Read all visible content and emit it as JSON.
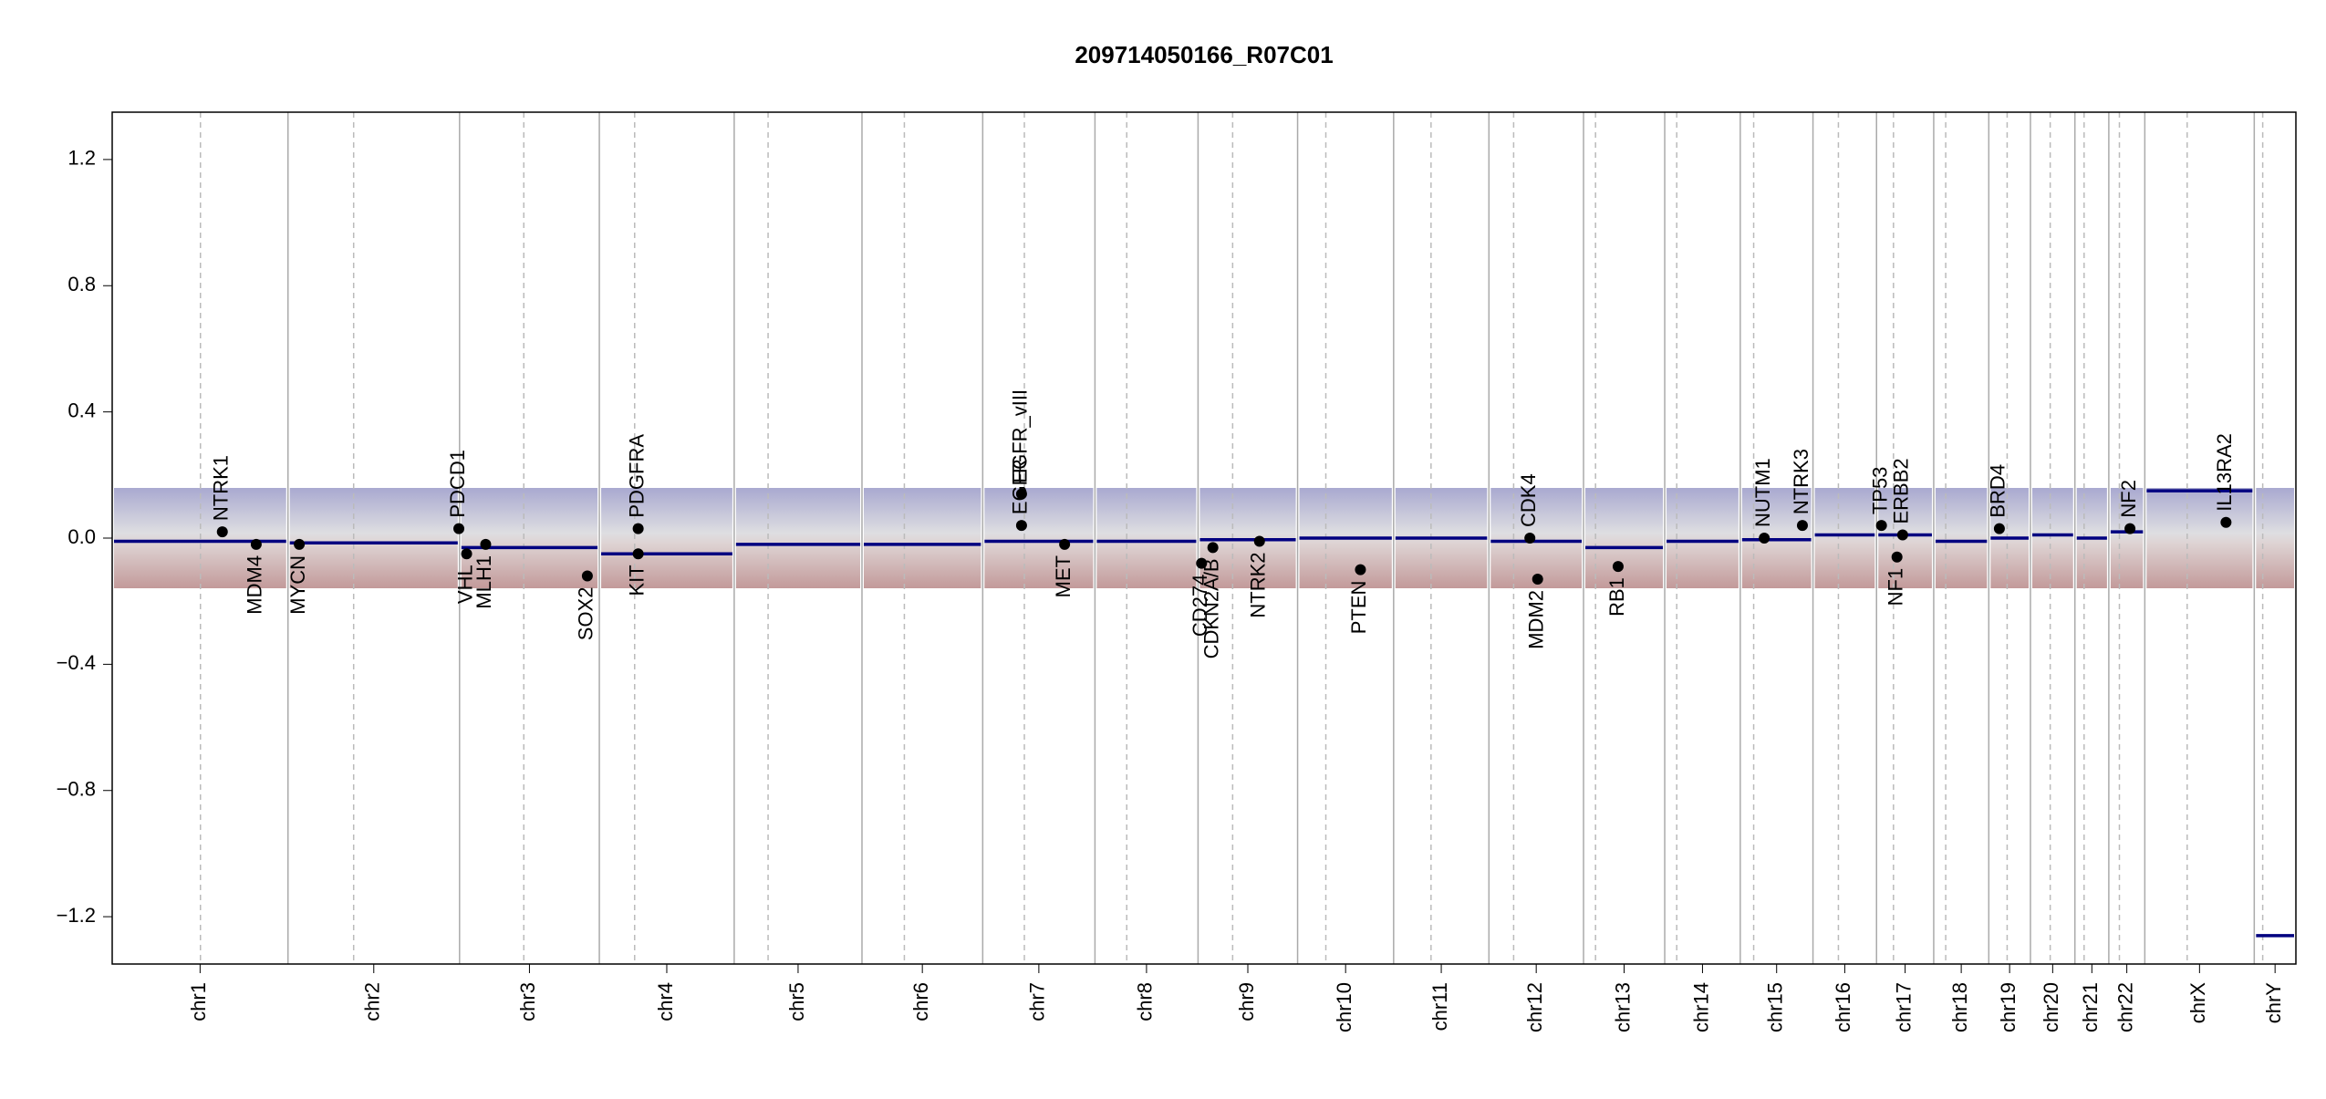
{
  "chart_data": {
    "type": "cnv",
    "title": "209714050166_R07C01",
    "ylim": [
      -1.35,
      1.35
    ],
    "yticks": [
      {
        "value": -1.2,
        "label": "−1.2"
      },
      {
        "value": -0.8,
        "label": "−0.8"
      },
      {
        "value": -0.4,
        "label": "−0.4"
      },
      {
        "value": 0,
        "label": "0.0"
      },
      {
        "value": 0.4,
        "label": "0.4"
      },
      {
        "value": 0.8,
        "label": "0.8"
      },
      {
        "value": 1.2,
        "label": "1.2"
      }
    ],
    "segment_color": "#000080",
    "point_color": "#000000",
    "chromosomes": [
      {
        "name": "chr1",
        "length": 249,
        "centromere": 125,
        "segment": -0.01
      },
      {
        "name": "chr2",
        "length": 243,
        "centromere": 93,
        "segment": -0.015
      },
      {
        "name": "chr3",
        "length": 198,
        "centromere": 91,
        "segment": -0.03
      },
      {
        "name": "chr4",
        "length": 191,
        "centromere": 50,
        "segment": -0.05
      },
      {
        "name": "chr5",
        "length": 181,
        "centromere": 48,
        "segment": -0.02
      },
      {
        "name": "chr6",
        "length": 171,
        "centromere": 60,
        "segment": -0.02
      },
      {
        "name": "chr7",
        "length": 159,
        "centromere": 59,
        "segment": -0.01
      },
      {
        "name": "chr8",
        "length": 146,
        "centromere": 45,
        "segment": -0.01
      },
      {
        "name": "chr9",
        "length": 141,
        "centromere": 49,
        "segment": -0.005
      },
      {
        "name": "chr10",
        "length": 136,
        "centromere": 40,
        "segment": 0
      },
      {
        "name": "chr11",
        "length": 135,
        "centromere": 53,
        "segment": 0
      },
      {
        "name": "chr12",
        "length": 134,
        "centromere": 35,
        "segment": -0.01
      },
      {
        "name": "chr13",
        "length": 115,
        "centromere": 17,
        "segment": -0.03
      },
      {
        "name": "chr14",
        "length": 107,
        "centromere": 17,
        "segment": -0.01
      },
      {
        "name": "chr15",
        "length": 103,
        "centromere": 19,
        "segment": -0.005
      },
      {
        "name": "chr16",
        "length": 90,
        "centromere": 36,
        "segment": 0.01
      },
      {
        "name": "chr17",
        "length": 81,
        "centromere": 24,
        "segment": 0.01
      },
      {
        "name": "chr18",
        "length": 78,
        "centromere": 17,
        "segment": -0.01
      },
      {
        "name": "chr19",
        "length": 59,
        "centromere": 26,
        "segment": 0
      },
      {
        "name": "chr20",
        "length": 63,
        "centromere": 28,
        "segment": 0.01
      },
      {
        "name": "chr21",
        "length": 48,
        "centromere": 13,
        "segment": 0
      },
      {
        "name": "chr22",
        "length": 51,
        "centromere": 15,
        "segment": 0.02
      },
      {
        "name": "chrX",
        "length": 155,
        "centromere": 60,
        "segment": 0.15
      },
      {
        "name": "chrY",
        "length": 59,
        "centromere": 12,
        "segment": -1.26
      }
    ],
    "genes": [
      {
        "name": "NTRK1",
        "chrom": "chr1",
        "position": 156,
        "value": 0.02
      },
      {
        "name": "MDM4",
        "chrom": "chr1",
        "position": 204,
        "value": -0.02
      },
      {
        "name": "MYCN",
        "chrom": "chr2",
        "position": 16,
        "value": -0.02
      },
      {
        "name": "PDCD1",
        "chrom": "chr2",
        "position": 242,
        "value": 0.03
      },
      {
        "name": "VHL",
        "chrom": "chr3",
        "position": 10,
        "value": -0.05
      },
      {
        "name": "MLH1",
        "chrom": "chr3",
        "position": 37,
        "value": -0.02
      },
      {
        "name": "SOX2",
        "chrom": "chr3",
        "position": 181,
        "value": -0.12
      },
      {
        "name": "KIT",
        "chrom": "chr4",
        "position": 55,
        "value": -0.05
      },
      {
        "name": "PDGFRA",
        "chrom": "chr4",
        "position": 55,
        "value": 0.03
      },
      {
        "name": "EGFR",
        "chrom": "chr7",
        "position": 55,
        "value": 0.04
      },
      {
        "name": "EGFR_vIII",
        "chrom": "chr7",
        "position": 55,
        "value": 0.14
      },
      {
        "name": "MET",
        "chrom": "chr7",
        "position": 116,
        "value": -0.02
      },
      {
        "name": "CD274",
        "chrom": "chr9",
        "position": 5,
        "value": -0.08
      },
      {
        "name": "CDKN2A/B",
        "chrom": "chr9",
        "position": 21,
        "value": -0.03
      },
      {
        "name": "NTRK2",
        "chrom": "chr9",
        "position": 87,
        "value": -0.01
      },
      {
        "name": "PTEN",
        "chrom": "chr10",
        "position": 89,
        "value": -0.1
      },
      {
        "name": "CDK4",
        "chrom": "chr12",
        "position": 58,
        "value": 0
      },
      {
        "name": "MDM2",
        "chrom": "chr12",
        "position": 69,
        "value": -0.13
      },
      {
        "name": "RB1",
        "chrom": "chr13",
        "position": 49,
        "value": -0.09
      },
      {
        "name": "NUTM1",
        "chrom": "chr15",
        "position": 34,
        "value": 0
      },
      {
        "name": "NTRK3",
        "chrom": "chr15",
        "position": 88,
        "value": 0.04
      },
      {
        "name": "TP53",
        "chrom": "chr17",
        "position": 7,
        "value": 0.04
      },
      {
        "name": "NF1",
        "chrom": "chr17",
        "position": 29,
        "value": -0.06
      },
      {
        "name": "ERBB2",
        "chrom": "chr17",
        "position": 37,
        "value": 0.01
      },
      {
        "name": "BRD4",
        "chrom": "chr19",
        "position": 15,
        "value": 0.03
      },
      {
        "name": "NF2",
        "chrom": "chr22",
        "position": 30,
        "value": 0.03
      },
      {
        "name": "IL13RA2",
        "chrom": "chrX",
        "position": 115,
        "value": 0.05
      }
    ]
  }
}
